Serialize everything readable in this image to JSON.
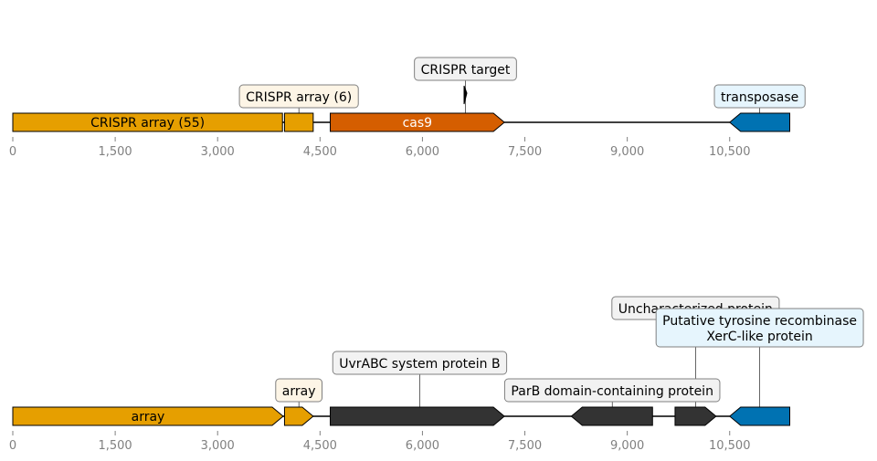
{
  "chart_data": [
    {
      "type": "genome-map",
      "x_ticks": [
        0,
        1500,
        3000,
        4500,
        6000,
        7500,
        9000,
        10500
      ],
      "x_tick_labels": [
        "0",
        "1,500",
        "3,000",
        "4,500",
        "6,000",
        "7,500",
        "9,000",
        "10,500"
      ],
      "xlim": [
        0,
        11400
      ],
      "features": [
        {
          "start": 0,
          "end": 3950,
          "strand": 0,
          "color": "#e69f00",
          "label": "CRISPR array (55)",
          "label_color": "#000000"
        },
        {
          "start": 3980,
          "end": 4400,
          "strand": 0,
          "color": "#e69f00",
          "label": ""
        },
        {
          "start": 4650,
          "end": 7200,
          "strand": 1,
          "color": "#d55e00",
          "label": "cas9",
          "label_color": "#ffffff"
        },
        {
          "start": 10500,
          "end": 11380,
          "strand": -1,
          "color": "#0072b2",
          "label": ""
        },
        {
          "start": 6610,
          "end": 6650,
          "strand": 0,
          "color": "#000000",
          "label": "",
          "marker": "target"
        }
      ],
      "annotations": [
        {
          "text": [
            "CRISPR target"
          ],
          "pos": 6630,
          "level": 2,
          "bg": "#f2f2f2"
        },
        {
          "text": [
            "CRISPR array (6)"
          ],
          "pos": 4190,
          "level": 1,
          "bg": "#fdf5e6"
        },
        {
          "text": [
            "transposase"
          ],
          "pos": 10940,
          "level": 1,
          "bg": "#e6f5fd"
        }
      ]
    },
    {
      "type": "genome-map",
      "x_ticks": [
        0,
        1500,
        3000,
        4500,
        6000,
        7500,
        9000,
        10500
      ],
      "x_tick_labels": [
        "0",
        "1,500",
        "3,000",
        "4,500",
        "6,000",
        "7,500",
        "9,000",
        "10,500"
      ],
      "xlim": [
        0,
        11400
      ],
      "features": [
        {
          "start": 0,
          "end": 3960,
          "strand": 1,
          "color": "#e69f00",
          "label": "array",
          "label_color": "#000000"
        },
        {
          "start": 3980,
          "end": 4400,
          "strand": 1,
          "color": "#e69f00",
          "label": ""
        },
        {
          "start": 4650,
          "end": 7200,
          "strand": 1,
          "color": "#333333",
          "label": ""
        },
        {
          "start": 8180,
          "end": 9370,
          "strand": -1,
          "color": "#333333",
          "label": ""
        },
        {
          "start": 9700,
          "end": 10300,
          "strand": 1,
          "color": "#333333",
          "label": ""
        },
        {
          "start": 10500,
          "end": 11380,
          "strand": -1,
          "color": "#0072b2",
          "label": ""
        }
      ],
      "annotations": [
        {
          "text": [
            "Uncharacterized protein"
          ],
          "pos": 10000,
          "level": 4,
          "bg": "#f2f2f2"
        },
        {
          "text": [
            "Putative tyrosine recombinase",
            "XerC-like protein"
          ],
          "pos": 10940,
          "level": 3,
          "bg": "#e6f5fd"
        },
        {
          "text": [
            "UvrABC system protein B"
          ],
          "pos": 5960,
          "level": 2,
          "bg": "#f2f2f2"
        },
        {
          "text": [
            "array"
          ],
          "pos": 4190,
          "level": 1,
          "bg": "#fdf5e6"
        },
        {
          "text": [
            "ParB domain-containing protein"
          ],
          "pos": 8780,
          "level": 1,
          "bg": "#f2f2f2"
        }
      ]
    }
  ]
}
